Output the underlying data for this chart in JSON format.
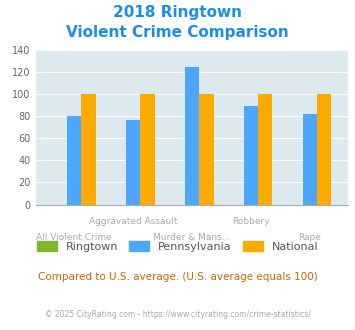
{
  "title_line1": "2018 Ringtown",
  "title_line2": "Violent Crime Comparison",
  "group_labels_top": [
    "",
    "Aggravated Assault",
    "",
    "Robbery",
    ""
  ],
  "group_labels_bot": [
    "All Violent Crime",
    "",
    "Murder & Mans...",
    "",
    "Rape"
  ],
  "ringtown": [
    0,
    0,
    0,
    0,
    0
  ],
  "pennsylvania": [
    80,
    76,
    124,
    89,
    82
  ],
  "national": [
    100,
    100,
    100,
    100,
    100
  ],
  "ylim": [
    0,
    140
  ],
  "yticks": [
    0,
    20,
    40,
    60,
    80,
    100,
    120,
    140
  ],
  "color_ringtown": "#7cb82f",
  "color_pennsylvania": "#4da6ff",
  "color_national": "#ffaa00",
  "title_color": "#1a8fea",
  "bg_color": "#dce9ef",
  "axis_label_color": "#aaaaaa",
  "legend_label_color": "#555555",
  "footer_color": "#aaaaaa",
  "note_color": "#cc6600",
  "note_text": "Compared to U.S. average. (U.S. average equals 100)",
  "footer_text": "© 2025 CityRating.com - https://www.cityrating.com/crime-statistics/"
}
